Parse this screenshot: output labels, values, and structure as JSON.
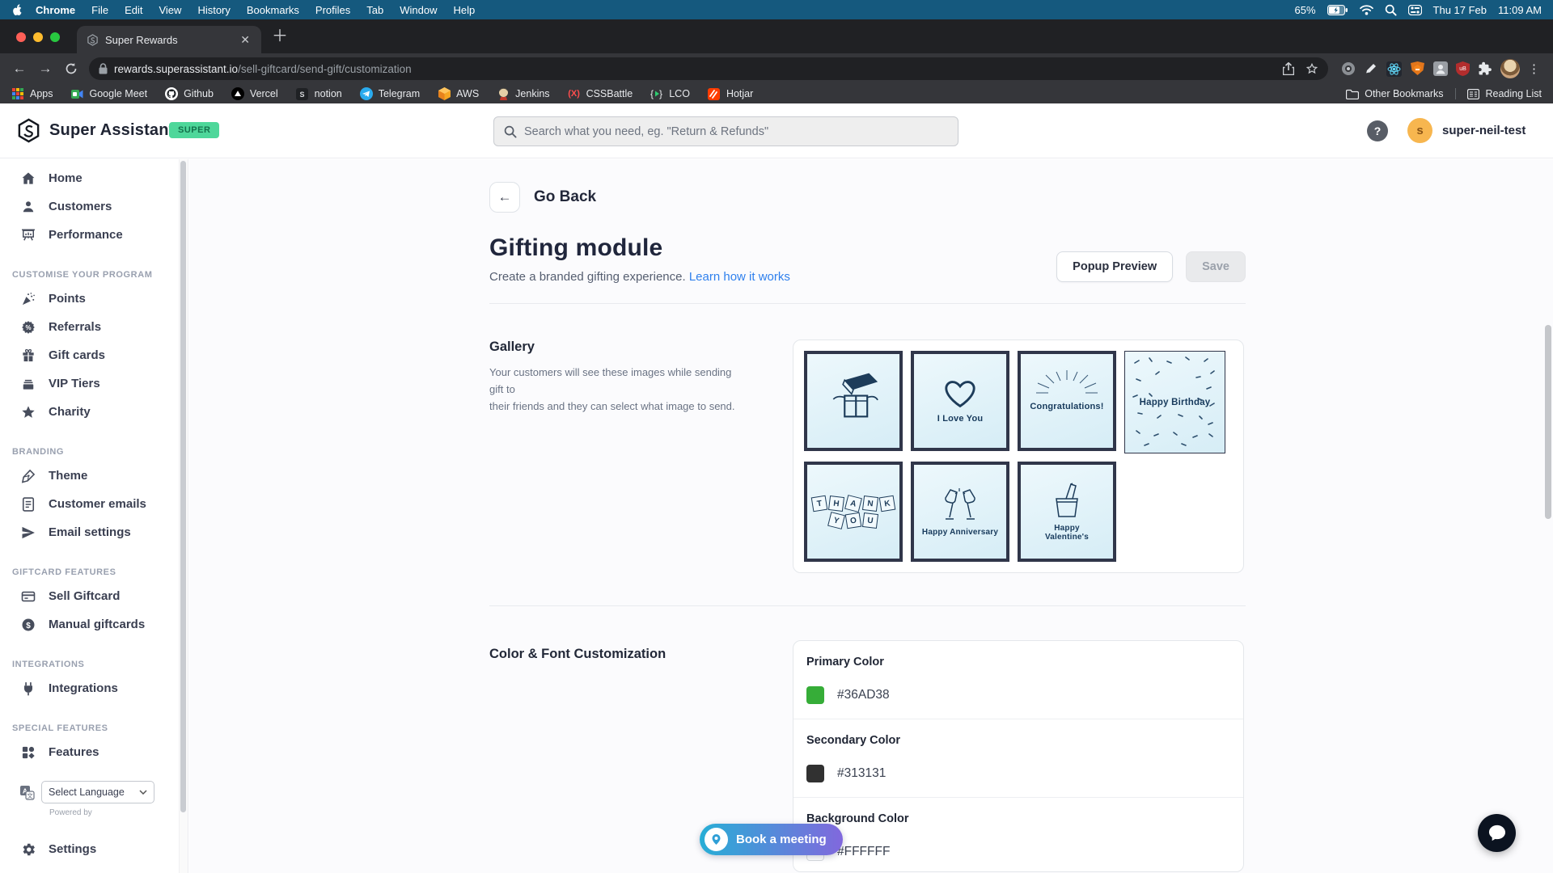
{
  "menubar": {
    "items": [
      "Chrome",
      "File",
      "Edit",
      "View",
      "History",
      "Bookmarks",
      "Profiles",
      "Tab",
      "Window",
      "Help"
    ],
    "battery_pct": "65%",
    "date": "Thu 17 Feb",
    "time": "11:09 AM"
  },
  "browser": {
    "tab_title": "Super Rewards",
    "url_host": "rewards.superassistant.io",
    "url_path": "/sell-giftcard/send-gift/customization",
    "bookmarks": [
      "Apps",
      "Google Meet",
      "Github",
      "Vercel",
      "notion",
      "Telegram",
      "AWS",
      "Jenkins",
      "CSSBattle",
      "LCO",
      "Hotjar"
    ],
    "other_bookmarks": "Other Bookmarks",
    "reading_list": "Reading List"
  },
  "header": {
    "brand": "Super Assistant",
    "badge": "SUPER",
    "search_placeholder": "Search what you need, eg. \"Return & Refunds\"",
    "help": "?",
    "avatar_initial": "s",
    "username": "super-neil-test"
  },
  "sidebar": {
    "main_items": [
      "Home",
      "Customers",
      "Performance"
    ],
    "sections": [
      {
        "title": "CUSTOMISE YOUR PROGRAM",
        "items": [
          "Points",
          "Referrals",
          "Gift cards",
          "VIP Tiers",
          "Charity"
        ]
      },
      {
        "title": "BRANDING",
        "items": [
          "Theme",
          "Customer emails",
          "Email settings"
        ]
      },
      {
        "title": "GIFTCARD FEATURES",
        "items": [
          "Sell Giftcard",
          "Manual giftcards"
        ]
      },
      {
        "title": "INTEGRATIONS",
        "items": [
          "Integrations"
        ]
      },
      {
        "title": "SPECIAL FEATURES",
        "items": [
          "Features"
        ]
      }
    ],
    "language_select": "Select Language",
    "powered_by": "Powered by",
    "settings": "Settings"
  },
  "main": {
    "go_back": "Go Back",
    "title": "Gifting module",
    "subtitle": "Create a branded gifting experience.",
    "learn_link": "Learn how it works",
    "popup_preview_btn": "Popup Preview",
    "save_btn": "Save",
    "gallery": {
      "label": "Gallery",
      "description_line1": "Your customers will see these images while sending gift to",
      "description_line2": "their friends and they can select what image to send.",
      "images": [
        {
          "name": "gift-box",
          "caption": ""
        },
        {
          "name": "i-love-you",
          "caption": "I Love You"
        },
        {
          "name": "congratulations",
          "caption": "Congratulations!"
        },
        {
          "name": "happy-birthday",
          "caption": "Happy Birthday"
        },
        {
          "name": "thank-you",
          "caption": "THANK YOU"
        },
        {
          "name": "happy-anniversary",
          "caption": "Happy Anniversary"
        },
        {
          "name": "happy-valentines",
          "caption": "Happy Valentine's"
        }
      ]
    },
    "customization": {
      "label": "Color & Font Customization",
      "rows": [
        {
          "label": "Primary Color",
          "value": "#36AD38",
          "swatch": "#36AD38"
        },
        {
          "label": "Secondary Color",
          "value": "#313131",
          "swatch": "#313131"
        },
        {
          "label": "Background Color",
          "value": "#FFFFFF",
          "swatch": "#FFFFFF"
        }
      ]
    }
  },
  "floating": {
    "book_meeting": "Book a meeting"
  }
}
